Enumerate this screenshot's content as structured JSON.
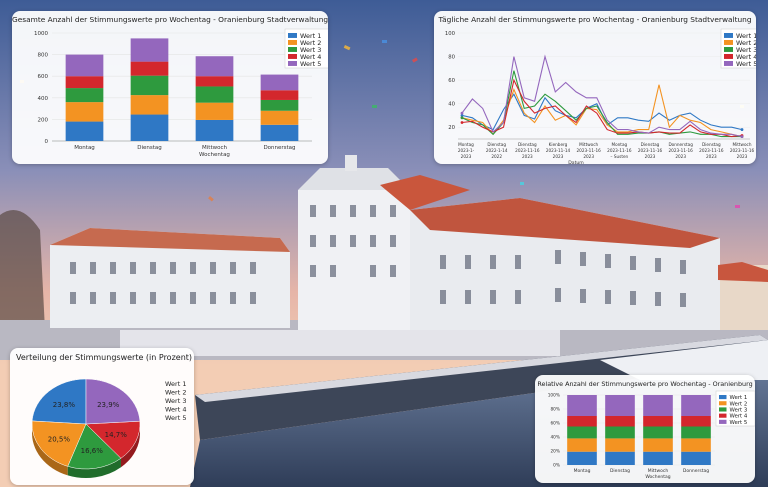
{
  "colors": {
    "wert1": "#2f78c5",
    "wert2": "#f39322",
    "wert3": "#2e9a3e",
    "wert4": "#d3272d",
    "wert5": "#9467bd"
  },
  "chart_data": [
    {
      "type": "bar",
      "stacked": true,
      "title": "Gesamte Anzahl der Stimmungswerte pro Wochentag - Oranienburg Stadtverwaltung",
      "categories": [
        "Montag",
        "Dienstag",
        "Mittwoch",
        "Donnerstag"
      ],
      "xlabel": "Wochentag",
      "ylabel": "",
      "ylim": [
        0,
        1000
      ],
      "yticks": [
        "0",
        "200",
        "400",
        "600",
        "800",
        "1000"
      ],
      "legend": [
        "Wert 1",
        "Wert 2",
        "Wert 3",
        "Wert 4",
        "Wert 5"
      ],
      "legend_position": "top-right",
      "series": [
        {
          "name": "Wert 1",
          "values": [
            180,
            245,
            195,
            150
          ]
        },
        {
          "name": "Wert 2",
          "values": [
            180,
            180,
            160,
            130
          ]
        },
        {
          "name": "Wert 3",
          "values": [
            130,
            180,
            150,
            100
          ]
        },
        {
          "name": "Wert 4",
          "values": [
            110,
            130,
            95,
            90
          ]
        },
        {
          "name": "Wert 5",
          "values": [
            200,
            215,
            185,
            145
          ]
        }
      ]
    },
    {
      "type": "line",
      "title": "Tägliche Anzahl der Stimmungswerte pro Wochentag - Oranienburg Stadtverwaltung",
      "xlabel": "Datum",
      "ylabel": "",
      "ylim": [
        10,
        100
      ],
      "yticks": [
        "20",
        "40",
        "60",
        "80",
        "100"
      ],
      "x_ticks": [
        [
          "Montag",
          "2023-1-",
          "2023"
        ],
        [
          "Dienstag",
          "2022-1-14",
          "2022"
        ],
        [
          "Dienstag",
          "2023-11-16",
          "2023"
        ],
        [
          "Kienberg",
          "2023-11-14",
          "2023"
        ],
        [
          "Mittwoch",
          "2023-11-16",
          "2023"
        ],
        [
          "Montag",
          "2023-11-16",
          "– Susten"
        ],
        [
          "Dienstag",
          "2023-11-16",
          "2023"
        ],
        [
          "Donnerstag",
          "2023-11-16",
          "2023"
        ],
        [
          "Dienstag",
          "2023-11-16",
          "2023"
        ],
        [
          "Mittwoch",
          "2023-11-16",
          "2023"
        ]
      ],
      "legend": [
        "Wert 1",
        "Wert 2",
        "Wert 3",
        "Wert 4",
        "Wert 5"
      ],
      "legend_position": "top-right",
      "series": [
        {
          "name": "Wert 1",
          "values": [
            30,
            28,
            22,
            18,
            35,
            48,
            30,
            27,
            45,
            34,
            30,
            28,
            36,
            40,
            22,
            28,
            28,
            26,
            25,
            32,
            26,
            30,
            32,
            26,
            22,
            20,
            20,
            18
          ]
        },
        {
          "name": "Wert 2",
          "values": [
            28,
            26,
            24,
            14,
            26,
            52,
            32,
            24,
            38,
            26,
            30,
            22,
            36,
            35,
            22,
            16,
            16,
            18,
            18,
            56,
            20,
            30,
            26,
            24,
            18,
            16,
            14,
            12
          ]
        },
        {
          "name": "Wert 3",
          "values": [
            28,
            24,
            22,
            14,
            24,
            68,
            36,
            38,
            48,
            42,
            34,
            26,
            36,
            38,
            24,
            14,
            14,
            15,
            15,
            16,
            14,
            15,
            16,
            14,
            14,
            12,
            12,
            12
          ]
        },
        {
          "name": "Wert 4",
          "values": [
            24,
            25,
            20,
            16,
            20,
            60,
            42,
            32,
            36,
            38,
            30,
            24,
            38,
            32,
            18,
            15,
            15,
            16,
            15,
            16,
            15,
            15,
            22,
            16,
            14,
            14,
            12,
            13
          ]
        },
        {
          "name": "Wert 5",
          "values": [
            32,
            44,
            36,
            16,
            24,
            80,
            45,
            42,
            80,
            50,
            58,
            50,
            45,
            45,
            26,
            18,
            18,
            16,
            15,
            20,
            18,
            18,
            25,
            18,
            15,
            14,
            14,
            12
          ]
        }
      ]
    },
    {
      "type": "pie",
      "title": "Verteilung der Stimmungswerte (in Prozent)",
      "labels": [
        "Wert 1",
        "Wert 2",
        "Wert 3",
        "Wert 4",
        "Wert 5"
      ],
      "values": [
        23.8,
        20.5,
        16.6,
        14.7,
        23.9
      ],
      "value_labels": [
        "23,8%",
        "20,5%",
        "16,6%",
        "14,7%",
        "23,9%"
      ],
      "legend_position": "right"
    },
    {
      "type": "bar",
      "stacked": true,
      "normalized": true,
      "title": "Relative Anzahl der Stimmungswerte pro Wochentag - Oranienburg",
      "categories": [
        "Montag",
        "Dienstag",
        "Mittwoch",
        "Donnerstag"
      ],
      "xlabel": "Wochentag",
      "ylim": [
        0,
        100
      ],
      "yticks": [
        "0%",
        "20%",
        "40%",
        "60%",
        "80%",
        "100%"
      ],
      "legend": [
        "Wert 1",
        "Wert 2",
        "Wert 3",
        "Wert 4",
        "Wert 5"
      ],
      "legend_position": "top-right",
      "series": [
        {
          "name": "Wert 1",
          "values": [
            19,
            19,
            19,
            19
          ]
        },
        {
          "name": "Wert 2",
          "values": [
            19,
            19,
            19,
            19
          ]
        },
        {
          "name": "Wert 3",
          "values": [
            17,
            17,
            17,
            17
          ]
        },
        {
          "name": "Wert 4",
          "values": [
            15,
            15,
            15,
            15
          ]
        },
        {
          "name": "Wert 5",
          "values": [
            30,
            30,
            30,
            30
          ]
        }
      ]
    }
  ]
}
